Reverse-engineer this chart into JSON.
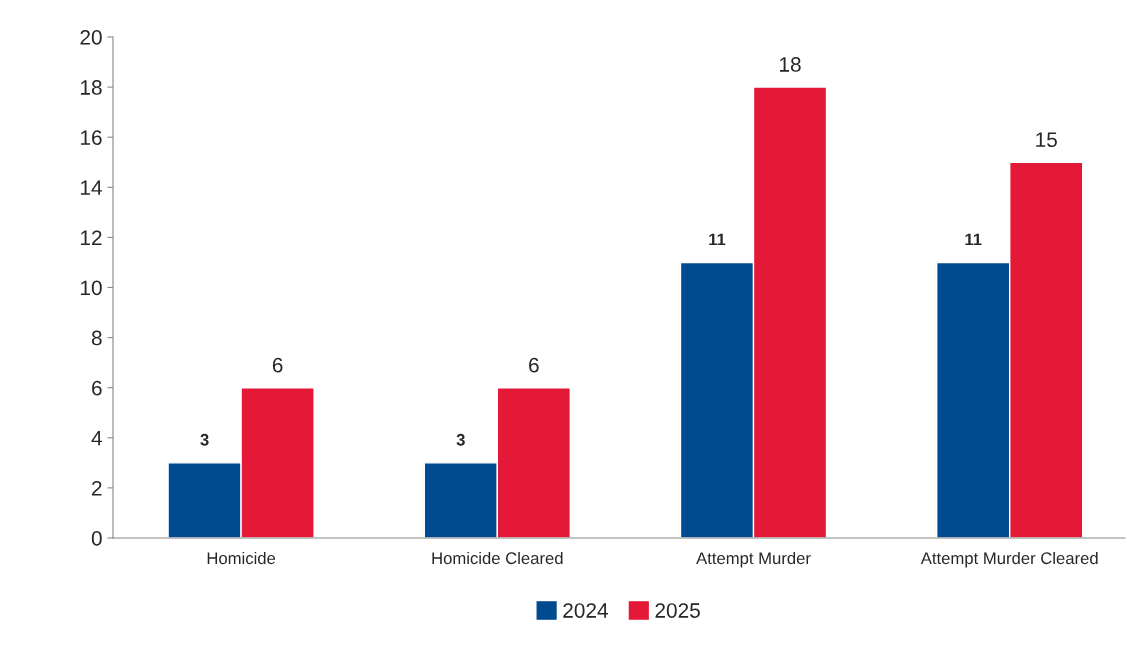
{
  "chart_data": {
    "type": "bar",
    "categories": [
      "Homicide",
      "Homicide Cleared",
      "Attempt Murder",
      "Attempt Murder Cleared"
    ],
    "series": [
      {
        "name": "2024",
        "color": "#004a8f",
        "values": [
          3,
          3,
          11,
          11
        ]
      },
      {
        "name": "2025",
        "color": "#e31937",
        "values": [
          6,
          6,
          18,
          15
        ]
      }
    ],
    "ylim": [
      0,
      20
    ],
    "yticks": [
      0,
      2,
      4,
      6,
      8,
      10,
      12,
      14,
      16,
      18,
      20
    ],
    "data_labels": true,
    "grid": false,
    "legend": "bottom"
  }
}
